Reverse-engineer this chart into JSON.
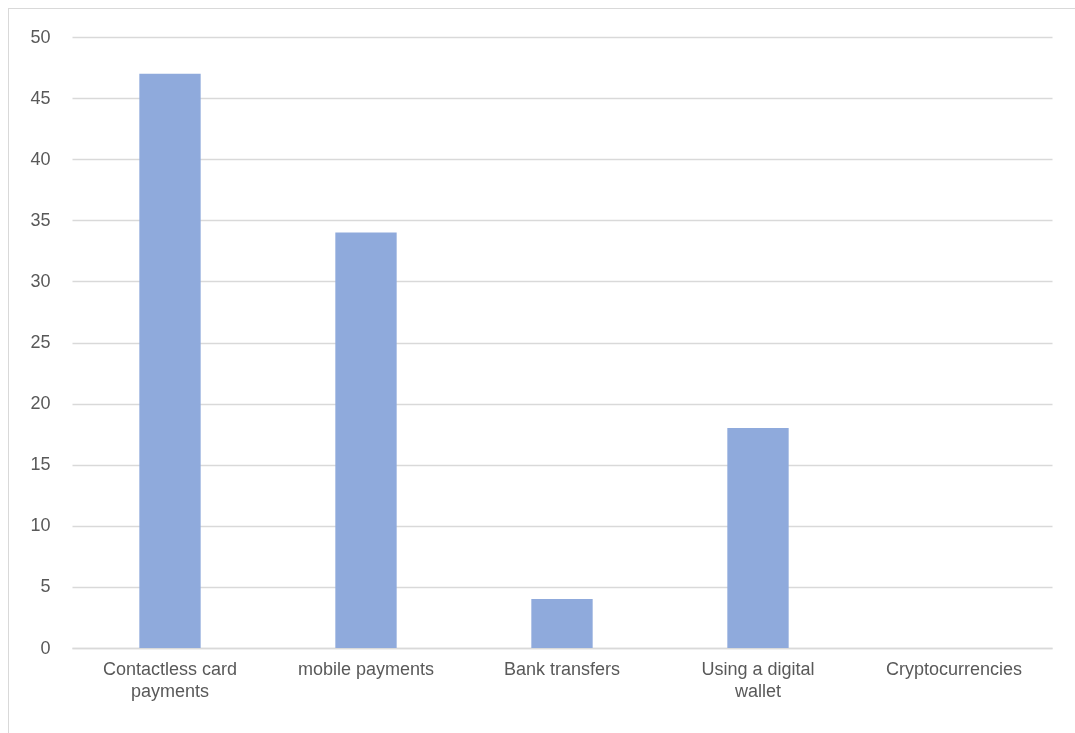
{
  "chart_data": {
    "type": "bar",
    "categories": [
      "Contactless card payments",
      "mobile payments",
      "Bank transfers",
      "Using a digital wallet",
      "Cryptocurrencies"
    ],
    "values": [
      47,
      34,
      4,
      18,
      0
    ],
    "color": "#8faadc",
    "ylim": [
      0,
      50
    ],
    "yticks": [
      0,
      5,
      10,
      15,
      20,
      25,
      30,
      35,
      40,
      45,
      50
    ],
    "grid": "y"
  }
}
